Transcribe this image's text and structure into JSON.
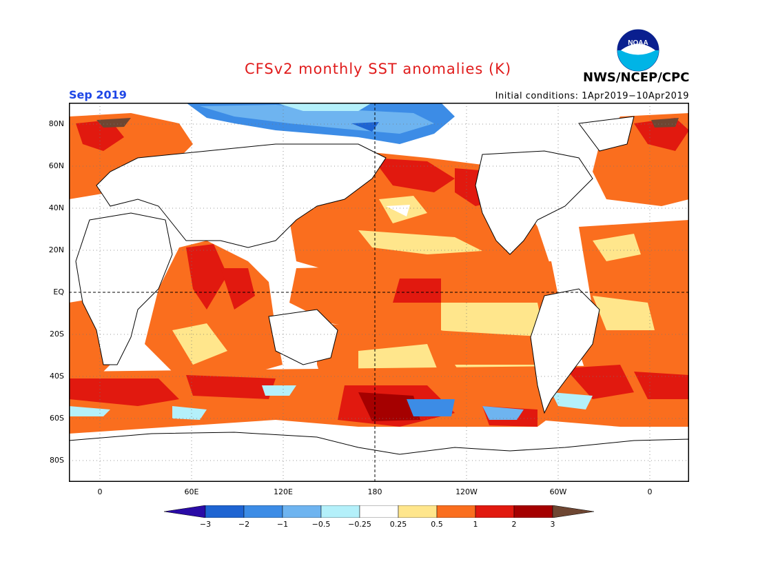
{
  "title": "CFSv2 monthly SST anomalies (K)",
  "agency": "NWS/NCEP/CPC",
  "logo_text": "NOAA",
  "valid_month": "Sep 2019",
  "initial_conditions": "Initial conditions: 1Apr2019−10Apr2019",
  "lat_labels": [
    "80N",
    "60N",
    "40N",
    "20N",
    "EQ",
    "20S",
    "40S",
    "60S",
    "80S"
  ],
  "lon_labels": [
    "0",
    "60E",
    "120E",
    "180",
    "120W",
    "60W",
    "0"
  ],
  "colorbar": {
    "ticks": [
      "−3",
      "−2",
      "−1",
      "−0.5",
      "−0.25",
      "0.25",
      "0.5",
      "1",
      "2",
      "3"
    ],
    "colors": [
      "#2a0ba6",
      "#1e64d2",
      "#3c8ce6",
      "#6eb4f0",
      "#b4f0fa",
      "#ffffff",
      "#ffe68c",
      "#fa6e1e",
      "#e1190f",
      "#a50000",
      "#6e4632"
    ]
  }
}
